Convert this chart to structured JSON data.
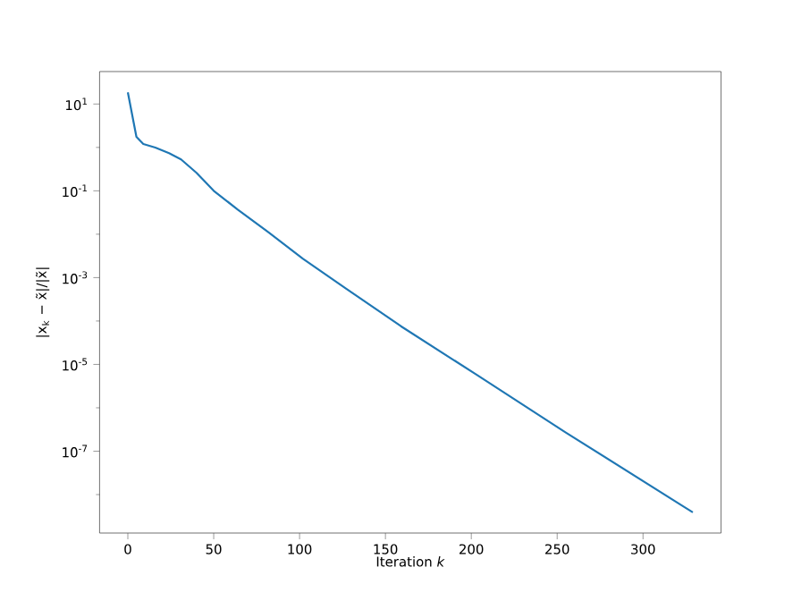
{
  "chart_data": {
    "type": "line",
    "xlabel": "Iteration *k*",
    "ylabel": "|x$_{k}$ − x̃|/|x̃|",
    "log": "y",
    "x": [
      0,
      5,
      9,
      16,
      24,
      31,
      40,
      50,
      64,
      82,
      102,
      127,
      159,
      203,
      255,
      329
    ],
    "series": [
      {
        "color": "#1f77b4",
        "values": [
          18.6,
          1.75,
          1.2,
          0.99,
          0.74,
          0.53,
          0.26,
          0.1,
          0.037,
          0.011,
          0.0027,
          0.00056,
          7.6e-05,
          5.8e-06,
          2.7e-07,
          3.9e-09
        ]
      }
    ],
    "xlim": [
      -16.45,
      345.45
    ],
    "ylim": [
      1.3e-09,
      56
    ],
    "xticks": [
      0,
      50,
      100,
      150,
      200,
      250,
      300
    ],
    "yticks": [
      {
        "value": 10,
        "label": "10$^{1}$"
      },
      {
        "value": 1,
        "label": null
      },
      {
        "value": 0.1,
        "label": "10$^{-1}$"
      },
      {
        "value": 0.01,
        "label": null
      },
      {
        "value": 0.001,
        "label": "10$^{-3}$"
      },
      {
        "value": 0.0001,
        "label": null
      },
      {
        "value": 1e-05,
        "label": "10$^{-5}$"
      },
      {
        "value": 1e-06,
        "label": null
      },
      {
        "value": 1e-07,
        "label": "10$^{-7}$"
      },
      {
        "value": 1e-08,
        "label": null
      }
    ],
    "grid": false
  }
}
